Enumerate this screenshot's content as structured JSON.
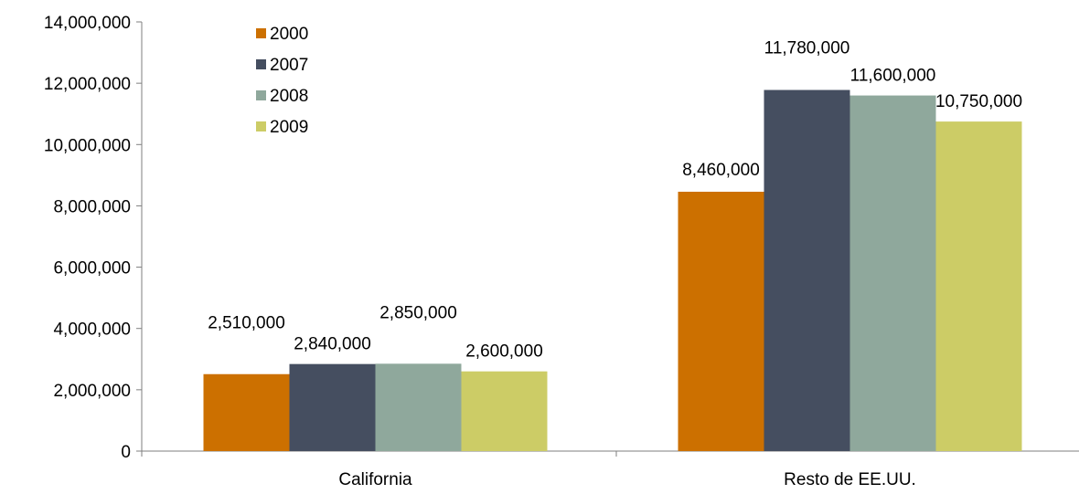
{
  "chart_data": {
    "type": "bar",
    "categories": [
      "California",
      "Resto de EE.UU."
    ],
    "series": [
      {
        "name": "2000",
        "color": "#CC7000",
        "values": [
          2510000,
          8460000
        ],
        "labels": [
          "2,510,000",
          "8,460,000"
        ]
      },
      {
        "name": "2007",
        "color": "#454E60",
        "values": [
          2840000,
          11780000
        ],
        "labels": [
          "2,840,000",
          "11,780,000"
        ]
      },
      {
        "name": "2008",
        "color": "#8FA89C",
        "values": [
          2850000,
          11600000
        ],
        "labels": [
          "2,850,000",
          "11,600,000"
        ]
      },
      {
        "name": "2009",
        "color": "#CCCC66",
        "values": [
          2600000,
          10750000
        ],
        "labels": [
          "2,600,000",
          "10,750,000"
        ]
      }
    ],
    "title": "",
    "xlabel": "",
    "ylabel": "",
    "ylim": [
      0,
      14000000
    ],
    "y_ticks": [
      0,
      2000000,
      4000000,
      6000000,
      8000000,
      10000000,
      12000000,
      14000000
    ],
    "y_tick_labels": [
      "0",
      "2,000,000",
      "4,000,000",
      "6,000,000",
      "8,000,000",
      "10,000,000",
      "12,000,000",
      "14,000,000"
    ],
    "grid": false,
    "legend_position": "top-left"
  }
}
